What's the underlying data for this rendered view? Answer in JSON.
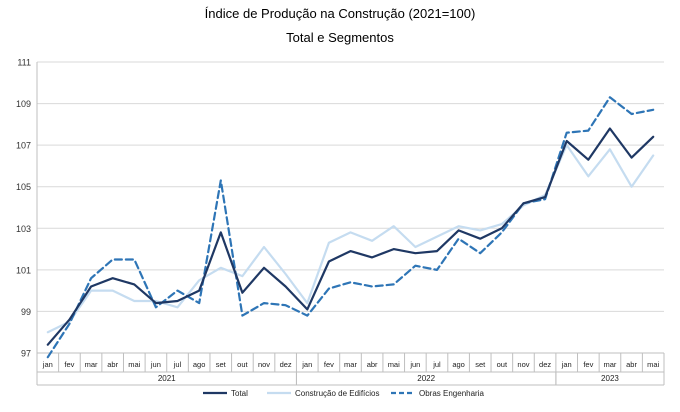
{
  "chart_data": {
    "type": "line",
    "title": "Índice de Produção na Construção (2021=100)",
    "subtitle": "Total e Segmentos",
    "xlabel": "",
    "ylabel": "",
    "ylim": [
      97,
      111
    ],
    "yticks": [
      "97",
      "99",
      "101",
      "103",
      "105",
      "107",
      "109",
      "111"
    ],
    "grid": true,
    "legend_position": "bottom",
    "months": [
      "jan",
      "fev",
      "mar",
      "abr",
      "mai",
      "jun",
      "jul",
      "ago",
      "set",
      "out",
      "nov",
      "dez",
      "jan",
      "fev",
      "mar",
      "abr",
      "mai",
      "jun",
      "jul",
      "ago",
      "set",
      "out",
      "nov",
      "dez",
      "jan",
      "fev",
      "mar",
      "abr",
      "mai"
    ],
    "years": [
      {
        "label": "2021",
        "from": 0,
        "to": 11
      },
      {
        "label": "2022",
        "from": 12,
        "to": 23
      },
      {
        "label": "2023",
        "from": 24,
        "to": 28
      }
    ],
    "series": [
      {
        "name": "Total",
        "color": "#1f3864",
        "dash": "solid",
        "width": 2.2,
        "values": [
          97.4,
          98.6,
          100.2,
          100.6,
          100.3,
          99.4,
          99.5,
          100.0,
          102.8,
          99.9,
          101.1,
          100.2,
          99.1,
          101.4,
          101.9,
          101.6,
          102.0,
          101.8,
          101.9,
          102.9,
          102.5,
          103.0,
          104.2,
          104.5,
          107.2,
          106.3,
          107.8,
          106.4,
          107.4
        ]
      },
      {
        "name": "Construção de Edifícios",
        "color": "#c5dcf0",
        "dash": "solid",
        "width": 2.2,
        "values": [
          98.0,
          98.5,
          100.0,
          100.0,
          99.5,
          99.5,
          99.2,
          100.5,
          101.1,
          100.7,
          102.1,
          100.8,
          99.4,
          102.3,
          102.8,
          102.4,
          103.1,
          102.1,
          102.6,
          103.1,
          102.9,
          103.2,
          104.1,
          104.6,
          107.0,
          105.5,
          106.8,
          105.0,
          106.5
        ]
      },
      {
        "name": "Obras Engenharia",
        "color": "#2e75b6",
        "dash": "dashed",
        "width": 2.2,
        "values": [
          96.8,
          98.4,
          100.6,
          101.5,
          101.5,
          99.2,
          100.0,
          99.4,
          105.3,
          98.8,
          99.4,
          99.3,
          98.8,
          100.1,
          100.4,
          100.2,
          100.3,
          101.2,
          101.0,
          102.5,
          101.8,
          102.8,
          104.2,
          104.4,
          107.6,
          107.7,
          109.3,
          108.5,
          108.7
        ]
      }
    ]
  }
}
